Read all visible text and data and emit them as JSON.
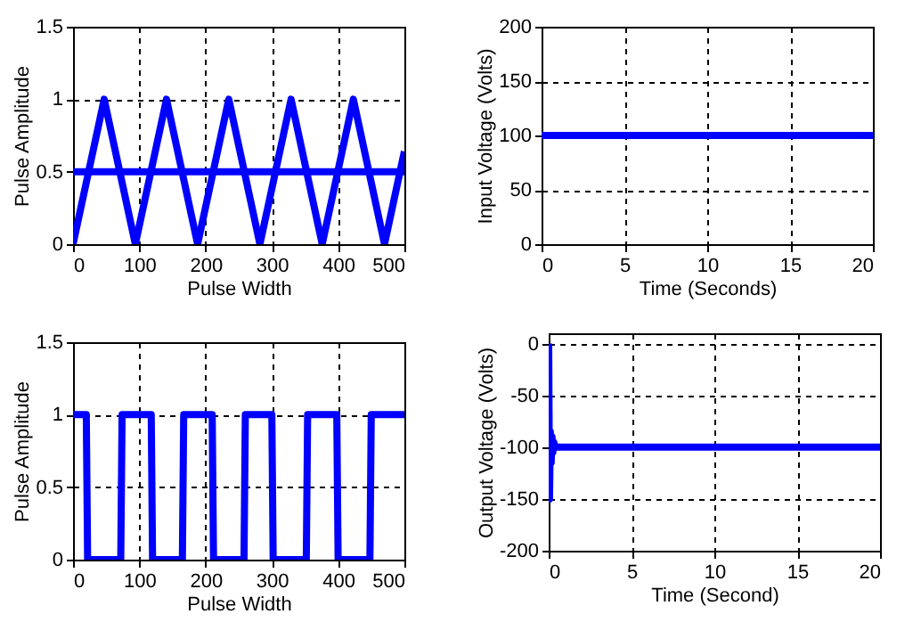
{
  "chart_data": [
    {
      "type": "line",
      "xlabel": "Pulse Width",
      "ylabel": "Pulse Amplitude",
      "xlim": [
        0,
        500
      ],
      "ylim": [
        0,
        1.5
      ],
      "xticks": [
        0,
        100,
        200,
        300,
        400,
        500
      ],
      "yticks": [
        0,
        0.5,
        1,
        1.5
      ],
      "grid": true,
      "series": [
        {
          "color": "#0000ff",
          "x": [
            0,
            47,
            94,
            141,
            188,
            235,
            282,
            329,
            376,
            423,
            470,
            500
          ],
          "values": [
            0,
            1,
            0,
            1,
            0,
            1,
            0,
            1,
            0,
            1,
            0,
            0.64
          ]
        },
        {
          "color": "#0000ff",
          "x": [
            0,
            500
          ],
          "values": [
            0.5,
            0.5
          ]
        }
      ]
    },
    {
      "type": "line",
      "xlabel": "Time (Seconds)",
      "ylabel": "Input Voltage (Volts)",
      "xlim": [
        0,
        20
      ],
      "ylim": [
        0,
        200
      ],
      "xticks": [
        0,
        5,
        10,
        15,
        20
      ],
      "yticks": [
        0,
        50,
        100,
        150,
        200
      ],
      "grid": true,
      "series": [
        {
          "color": "#0000ff",
          "x": [
            0,
            20
          ],
          "values": [
            100,
            100
          ]
        }
      ]
    },
    {
      "type": "line",
      "xlabel": "Pulse Width",
      "ylabel": "Pulse Amplitude",
      "xlim": [
        0,
        500
      ],
      "ylim": [
        0,
        1.5
      ],
      "xticks": [
        0,
        100,
        200,
        300,
        400,
        500
      ],
      "yticks": [
        0,
        0.5,
        1,
        1.5
      ],
      "grid": true,
      "series": [
        {
          "color": "#0000ff",
          "x": [
            0,
            20,
            22,
            72,
            74,
            118,
            120,
            165,
            167,
            210,
            212,
            258,
            260,
            300,
            302,
            352,
            354,
            398,
            400,
            448,
            450,
            500
          ],
          "values": [
            1,
            1,
            0,
            0,
            1,
            1,
            0,
            0,
            1,
            1,
            0,
            0,
            1,
            1,
            0,
            0,
            1,
            1,
            0,
            0,
            1,
            1
          ]
        }
      ]
    },
    {
      "type": "line",
      "xlabel": "Time (Second)",
      "ylabel": "Output Voltage (Volts)",
      "xlim": [
        0,
        20
      ],
      "ylim": [
        -200,
        10
      ],
      "xticks": [
        0,
        5,
        10,
        15,
        20
      ],
      "yticks": [
        -200,
        -150,
        -100,
        -50,
        0
      ],
      "grid": true,
      "series": [
        {
          "color": "#0000ff",
          "x": [
            0,
            0.05,
            0.1,
            0.15,
            0.2,
            0.25,
            0.3,
            0.4,
            20
          ],
          "values": [
            0,
            -150,
            -85,
            -115,
            -90,
            -105,
            -95,
            -100,
            -100
          ]
        }
      ]
    }
  ]
}
